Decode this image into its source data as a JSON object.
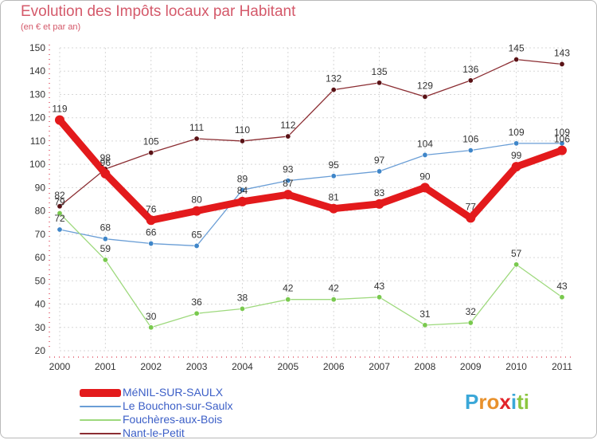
{
  "header": {
    "title": "Evolution des Impôts locaux par Habitant",
    "subtitle": "(en € et par an)"
  },
  "chart_data": {
    "type": "line",
    "x": [
      2000,
      2001,
      2002,
      2003,
      2004,
      2005,
      2006,
      2007,
      2008,
      2009,
      2010,
      2011
    ],
    "x_tick_labels": [
      "2000",
      "2001",
      "2002",
      "2003",
      "2004",
      "2005",
      "2006",
      "2007",
      "2008",
      "2009",
      "2010",
      "2011"
    ],
    "ylim": [
      20,
      150
    ],
    "y_ticks": [
      20,
      30,
      40,
      50,
      60,
      70,
      80,
      90,
      100,
      110,
      120,
      130,
      140,
      150
    ],
    "y_tick_labels": [
      "20",
      "30",
      "40",
      "50",
      "60",
      "70",
      "80",
      "90",
      "100",
      "110",
      "120",
      "130",
      "140",
      "150"
    ],
    "grid": true,
    "legend_position": "bottom-left",
    "series": [
      {
        "name": "Nant-le-Petit",
        "color": "#8b2d32",
        "marker": "#5a1216",
        "values": [
          82,
          98,
          105,
          111,
          110,
          112,
          132,
          135,
          129,
          136,
          145,
          143
        ],
        "labels": [
          "82",
          "98",
          "105",
          "111",
          "110",
          "112",
          "132",
          "135",
          "129",
          "136",
          "145",
          "143"
        ]
      },
      {
        "name": "Le Bouchon-sur-Saulx",
        "color": "#6a9ed6",
        "marker": "#3f86c9",
        "values": [
          72,
          68,
          66,
          65,
          89,
          93,
          95,
          97,
          104,
          106,
          109,
          109
        ],
        "labels": [
          "72",
          "68",
          "66",
          "65",
          "89",
          "93",
          "95",
          "97",
          "104",
          "106",
          "109",
          "109"
        ]
      },
      {
        "name": "Fouchères-aux-Bois",
        "color": "#9ed97d",
        "marker": "#79c94e",
        "values": [
          79,
          59,
          30,
          36,
          38,
          42,
          42,
          43,
          31,
          32,
          57,
          43
        ],
        "labels": [
          "79",
          "59",
          "30",
          "36",
          "38",
          "42",
          "42",
          "43",
          "31",
          "32",
          "57",
          "43"
        ]
      },
      {
        "name": "MéNIL-SUR-SAULX",
        "color": "#e31a1c",
        "marker": "#e31a1c",
        "values": [
          119,
          96,
          76,
          80,
          84,
          87,
          81,
          83,
          90,
          77,
          99,
          106
        ],
        "labels": [
          "119",
          "96",
          "76",
          "80",
          "84",
          "87",
          "81",
          "83",
          "90",
          "77",
          "99",
          "106"
        ]
      }
    ]
  },
  "legend": {
    "items": [
      {
        "label": "MéNIL-SUR-SAULX",
        "color": "#e31a1c"
      },
      {
        "label": "Le Bouchon-sur-Saulx",
        "color": "#6a9ed6"
      },
      {
        "label": "Fouchères-aux-Bois",
        "color": "#9ed97d"
      },
      {
        "label": "Nant-le-Petit",
        "color": "#8b2d32"
      }
    ]
  },
  "logo": {
    "letters": [
      "P",
      "r",
      "o",
      "x",
      "i",
      "t",
      "i"
    ],
    "colors": [
      "#3aa7d8",
      "#e8912c",
      "#e8912c",
      "#e2232a",
      "#3aa7d8",
      "#8cc63f",
      "#8cc63f"
    ]
  }
}
